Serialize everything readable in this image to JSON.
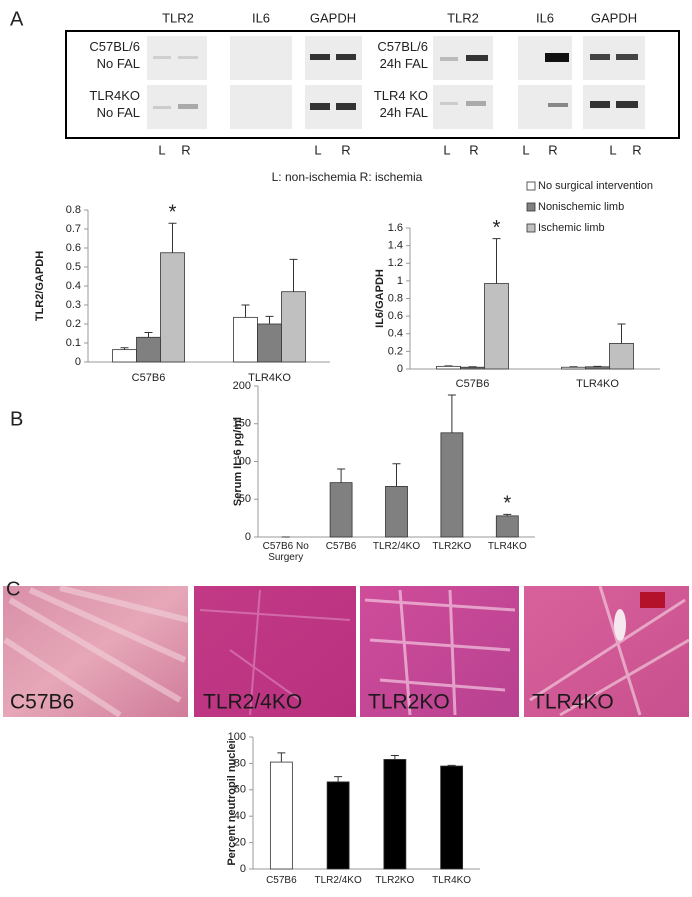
{
  "panel_labels": [
    "A",
    "B",
    "C"
  ],
  "gel": {
    "column_headers": [
      "TLR2",
      "IL6",
      "GAPDH",
      "TLR2",
      "IL6",
      "GAPDH"
    ],
    "row_labels": [
      "C57BL/6 No FAL",
      "TLR4KO No FAL",
      "C57BL/6 24h FAL",
      "TLR4 KO 24h FAL"
    ],
    "lane_labels": [
      "L",
      "R",
      "L",
      "R",
      "L",
      "R",
      "L",
      "R",
      "L",
      "R"
    ],
    "caption": "L:  non-ischemia R: ischemia"
  },
  "histology": {
    "labels": [
      "C57B6",
      "TLR2/4KO",
      "TLR2KO",
      "TLR4KO"
    ]
  },
  "chart_data": [
    {
      "type": "bar",
      "y_label": "TLR2/GAPDH",
      "categories": [
        "C57B6",
        "TLR4KO"
      ],
      "series": [
        {
          "color": "#ffffff",
          "values": [
            0.065,
            0.235
          ],
          "errors": [
            0.01,
            0.065
          ]
        },
        {
          "color": "#808080",
          "values": [
            0.13,
            0.2
          ],
          "errors": [
            0.025,
            0.04
          ]
        },
        {
          "color": "#c0c0c0",
          "values": [
            0.575,
            0.37
          ],
          "errors": [
            0.155,
            0.17
          ]
        }
      ],
      "ylim": [
        0,
        0.8
      ],
      "yticks": [
        0,
        0.1,
        0.2,
        0.3,
        0.4,
        0.5,
        0.6,
        0.7,
        0.8
      ],
      "annotations": [
        {
          "text": "*",
          "category": "C57B6"
        }
      ]
    },
    {
      "type": "bar",
      "y_label": "IL6/GAPDH",
      "categories": [
        "C57B6",
        "TLR4KO"
      ],
      "series": [
        {
          "name": "No surgical intervention",
          "color": "#ffffff",
          "values": [
            0.03,
            0.02
          ],
          "errors": [
            0.005,
            0.005
          ]
        },
        {
          "name": "Nonischemic limb",
          "color": "#808080",
          "values": [
            0.02,
            0.025
          ],
          "errors": [
            0.005,
            0.005
          ]
        },
        {
          "name": "Ischemic limb",
          "color": "#c0c0c0",
          "values": [
            0.97,
            0.29
          ],
          "errors": [
            0.51,
            0.22
          ]
        }
      ],
      "ylim": [
        0,
        1.6
      ],
      "yticks": [
        0,
        0.2,
        0.4,
        0.6,
        0.8,
        1,
        1.2,
        1.4,
        1.6
      ],
      "legend": "top",
      "annotations": [
        {
          "text": "*",
          "category": "C57B6"
        }
      ]
    },
    {
      "type": "bar",
      "y_label": "Serum IL-6 pg/ml",
      "categories": [
        "C57B6 No Surgery",
        "C57B6",
        "TLR2/4KO",
        "TLR2KO",
        "TLR4KO"
      ],
      "series": [
        {
          "color": "#808080",
          "values": [
            0,
            72,
            67,
            138,
            28
          ],
          "errors": [
            0,
            18,
            30,
            50,
            2
          ]
        }
      ],
      "ylim": [
        0,
        200
      ],
      "yticks": [
        0,
        50,
        100,
        150,
        200
      ],
      "annotations": [
        {
          "text": "*",
          "category": "TLR4KO"
        }
      ]
    },
    {
      "type": "bar",
      "y_label": "Percent neutropil nuclei",
      "categories": [
        "C57B6",
        "TLR2/4KO",
        "TLR2KO",
        "TLR4KO"
      ],
      "series": [
        {
          "colors": [
            "#ffffff",
            "#000000",
            "#000000",
            "#000000"
          ],
          "values": [
            81,
            66,
            83,
            78
          ],
          "errors": [
            7,
            4,
            3,
            0.5
          ]
        }
      ],
      "ylim": [
        0,
        100
      ],
      "yticks": [
        0,
        20,
        40,
        60,
        80,
        100
      ]
    }
  ]
}
